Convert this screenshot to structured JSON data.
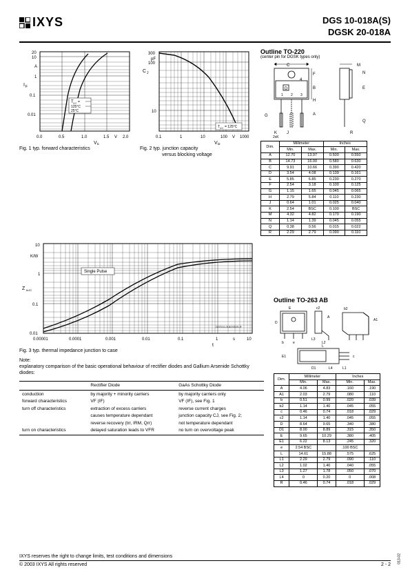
{
  "header": {
    "logo": "IXYS",
    "part1": "DGS    10-018A(S)",
    "part2": "DGSK 20-018A"
  },
  "fig1": {
    "caption": "Fig. 1  typ. forward characteristics",
    "y_label": "IF",
    "y_unit": "A",
    "x_label": "VF",
    "x_unit": "V",
    "y_ticks": [
      "20",
      "10",
      "1",
      "0.1",
      "0.01"
    ],
    "x_ticks": [
      "0.0",
      "0.5",
      "1.0",
      "1.5",
      "2.0"
    ],
    "legend": [
      "TVJ =",
      "125°C",
      "25°C"
    ]
  },
  "fig2": {
    "caption": "Fig. 2  typ. junction capacity",
    "caption2": "versus blocking voltage",
    "y_label": "CJ",
    "y_unit": "pF",
    "x_label": "VR",
    "x_unit": "V",
    "y_ticks": [
      "300",
      "100",
      "10"
    ],
    "x_ticks": [
      "0.1",
      "1",
      "10",
      "100",
      "1000"
    ],
    "note": "TVJ = 125°C"
  },
  "fig3": {
    "caption": "Fig. 3  typ. thermal impedance junction to case",
    "y_label": "ZthJC",
    "y_unit": "K/W",
    "x_label": "t",
    "x_unit": "s",
    "y_ticks": [
      "10",
      "1",
      "0.1",
      "0.01"
    ],
    "x_ticks": [
      "0.00001",
      "0.0001",
      "0.001",
      "0.01",
      "0.1",
      "1",
      "10"
    ],
    "legend": "Single Pulse",
    "code": "DGS10-018/20025-R"
  },
  "note": {
    "title": "Note:",
    "text": "explanatory comparison of the basic operational behaviour of rectifier diodes and Gallium Arsenide Schottky diodes:"
  },
  "comparison": {
    "col1": "",
    "col2": "Rectifier Diode",
    "col3": "GaAs Schottky Diode",
    "rows": [
      [
        "conduction",
        "by majority + minority carriers",
        "by majority carriers only"
      ],
      [
        "forward characteristics",
        "VF (IF)",
        "VF (IF), see Fig. 1"
      ],
      [
        "turn off characteristics",
        "extraction of excess carriers",
        "reverse current charges"
      ],
      [
        "",
        "causes temperature dependant",
        "junction capacity CJ, see Fig. 2;"
      ],
      [
        "",
        "reverse recovery (trr, IRM, Qrr)",
        "not temperature dependant"
      ],
      [
        "turn on characteristics",
        "delayed saturation leads to VFR",
        "no turn on overvoltage peak"
      ]
    ]
  },
  "outline220": {
    "title": "Outline TO-220",
    "sub": "(center pin for DGSK types only)",
    "hdr": [
      "Dim.",
      "Millimeter",
      "Inches"
    ],
    "sub_hdr": [
      "",
      "Min.",
      "Max.",
      "Min.",
      "Max."
    ],
    "rows": [
      [
        "A",
        "12.70",
        "13.97",
        "0.500",
        "0.550"
      ],
      [
        "B",
        "14.73",
        "16.00",
        "0.580",
        "0.630"
      ],
      [
        "C",
        "9.91",
        "10.66",
        "0.390",
        "0.420"
      ],
      [
        "D",
        "3.54",
        "4.08",
        "0.139",
        "0.161"
      ],
      [
        "E",
        "5.85",
        "6.85",
        "0.230",
        "0.270"
      ],
      [
        "F",
        "2.54",
        "3.18",
        "0.100",
        "0.125"
      ],
      [
        "G",
        "1.15",
        "1.65",
        "0.045",
        "0.065"
      ],
      [
        "H",
        "2.79",
        "5.84",
        "0.110",
        "0.230"
      ],
      [
        "J",
        "0.64",
        "1.01",
        "0.025",
        "0.040"
      ],
      [
        "K",
        "2.54",
        "BSC",
        "0.100",
        "BSC"
      ],
      [
        "M",
        "4.32",
        "4.82",
        "0.170",
        "0.190"
      ],
      [
        "N",
        "1.14",
        "1.39",
        "0.045",
        "0.055"
      ],
      [
        "Q",
        "0.38",
        "0.56",
        "0.015",
        "0.022"
      ],
      [
        "R",
        "2.29",
        "2.79",
        "0.090",
        "0.110"
      ]
    ]
  },
  "outline263": {
    "title": "Outline TO-263 AB",
    "hdr": [
      "Dim.",
      "Millimeter",
      "Inches"
    ],
    "sub_hdr": [
      "",
      "Min.",
      "Max.",
      "Min.",
      "Max."
    ],
    "rows": [
      [
        "A",
        "4.06",
        "4.83",
        ".160",
        ".190"
      ],
      [
        "A1",
        "2.03",
        "2.79",
        ".080",
        ".110"
      ],
      [
        "b",
        "0.51",
        "0.99",
        ".020",
        ".039"
      ],
      [
        "b2",
        "1.14",
        "1.40",
        ".045",
        ".055"
      ],
      [
        "c",
        "0.46",
        "0.74",
        ".018",
        ".029"
      ],
      [
        "c2",
        "1.14",
        "1.40",
        ".045",
        ".055"
      ],
      [
        "D",
        "8.64",
        "9.65",
        ".340",
        ".380"
      ],
      [
        "D1",
        "8.00",
        "8.89",
        ".315",
        ".350"
      ],
      [
        "E",
        "9.65",
        "10.29",
        ".380",
        ".405"
      ],
      [
        "E1",
        "6.22",
        "8.13",
        ".245",
        ".320"
      ],
      [
        "e",
        "2.54 BSC",
        "",
        ".100 BSC",
        ""
      ],
      [
        "L",
        "14.61",
        "15.88",
        ".575",
        ".625"
      ],
      [
        "L1",
        "2.29",
        "2.79",
        ".090",
        ".110"
      ],
      [
        "L2",
        "1.02",
        "1.40",
        ".040",
        ".055"
      ],
      [
        "L3",
        "1.27",
        "1.78",
        ".050",
        ".070"
      ],
      [
        "L4",
        "0",
        "0.20",
        "0",
        ".008"
      ],
      [
        "R",
        "0.46",
        "0.74",
        ".018",
        ".029"
      ]
    ]
  },
  "footer": {
    "disclaimer": "IXYS reserves the right to change limits, test conditions and dimensions",
    "copyright": "© 2003 IXYS All rights reserved",
    "page": "2 - 2",
    "side": "013-02"
  }
}
